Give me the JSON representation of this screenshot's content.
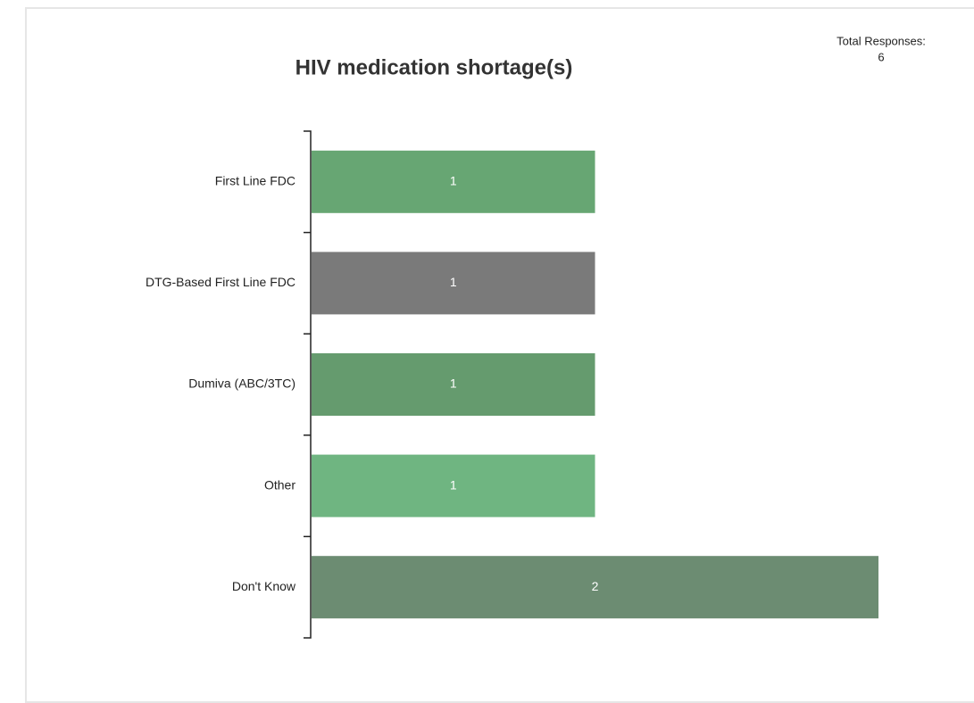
{
  "chart_data": {
    "type": "barh",
    "title": "HIV medication shortage(s)",
    "annotation": {
      "label": "Total Responses:",
      "value": 6
    },
    "categories": [
      "First Line FDC",
      "DTG-Based First Line FDC",
      "Dumiva (ABC/3TC)",
      "Other",
      "Don't Know"
    ],
    "values": [
      1,
      1,
      1,
      1,
      2
    ],
    "colors": [
      "#67a673",
      "#7a7a7a",
      "#659b6e",
      "#6fb581",
      "#6c8c72"
    ],
    "xlim": [
      0,
      2
    ]
  }
}
